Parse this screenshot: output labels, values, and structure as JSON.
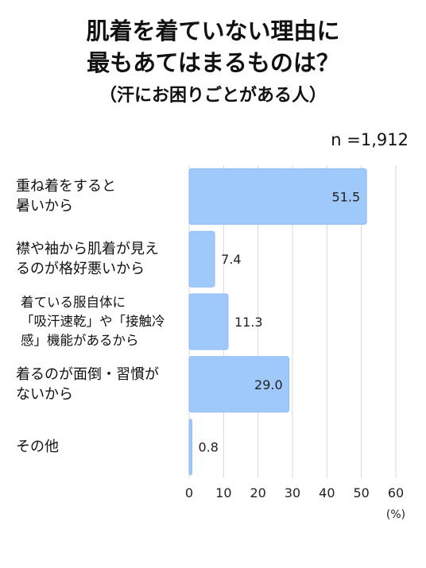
{
  "chart_data": {
    "type": "bar",
    "orientation": "horizontal",
    "title": [
      "肌着を着ていない理由に",
      "最もあてはまるものは？"
    ],
    "subtitle": "（汗にお困りごとがある人）",
    "sample_size": "n =1,912",
    "categories": [
      [
        "重ね着をすると",
        "暑いから"
      ],
      [
        "襟や袖から肌着が見え",
        "るのが格好悪いから"
      ],
      [
        "着ている服自体に",
        "「吸汗速乾」や「接触冷",
        "感」機能があるから"
      ],
      [
        "着るのが面倒・習慣が",
        "ないから"
      ],
      [
        "その他"
      ]
    ],
    "values": [
      51.5,
      7.4,
      11.3,
      29.0,
      0.8
    ],
    "value_labels": [
      "51.5",
      "7.4",
      "11.3",
      "29.0",
      "0.8"
    ],
    "xlim": [
      0,
      60
    ],
    "xticks": [
      "0",
      "10",
      "20",
      "30",
      "40",
      "50",
      "60"
    ],
    "xunit": "(%)",
    "grid": true,
    "colors": {
      "bar": "#9ec9fa",
      "bar_stroke": "#8fbcf2",
      "grid": "#d9d9d9",
      "text": "#111111"
    }
  }
}
